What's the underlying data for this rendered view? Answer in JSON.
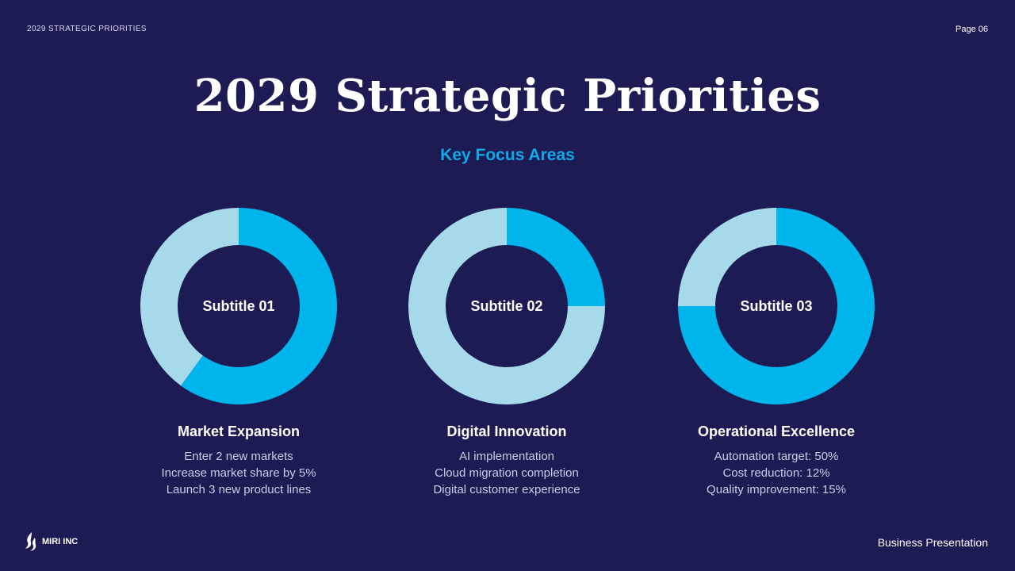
{
  "header": {
    "section_label": "2029 STRATEGIC PRIORITIES",
    "page_label": "Page 06"
  },
  "slide": {
    "title": "2029 Strategic Priorities",
    "subtitle": "Key Focus Areas"
  },
  "colors": {
    "background": "#1d1b54",
    "accent": "#00b4ec",
    "ring_light": "#a6d9ea",
    "subtitle": "#11a9e8"
  },
  "chart_data": [
    {
      "type": "pie",
      "center_label": "Subtitle 01",
      "values": [
        60,
        40
      ],
      "colors": [
        "#00b4ec",
        "#a6d9ea"
      ]
    },
    {
      "type": "pie",
      "center_label": "Subtitle 02",
      "values": [
        25,
        75
      ],
      "colors": [
        "#00b4ec",
        "#a6d9ea"
      ]
    },
    {
      "type": "pie",
      "center_label": "Subtitle 03",
      "values": [
        75,
        25
      ],
      "colors": [
        "#00b4ec",
        "#a6d9ea"
      ]
    }
  ],
  "cards": [
    {
      "title": "Market Expansion",
      "lines": [
        "Enter 2 new markets",
        "Increase market share by 5%",
        "Launch 3 new product lines"
      ]
    },
    {
      "title": "Digital Innovation",
      "lines": [
        "AI implementation",
        "Cloud migration completion",
        "Digital customer experience"
      ]
    },
    {
      "title": "Operational Excellence",
      "lines": [
        "Automation target: 50%",
        "Cost reduction: 12%",
        "Quality improvement: 15%"
      ]
    }
  ],
  "footer": {
    "logo_icon": "flame-logo-icon",
    "company": "MIRI INC",
    "doc_type": "Business Presentation"
  }
}
